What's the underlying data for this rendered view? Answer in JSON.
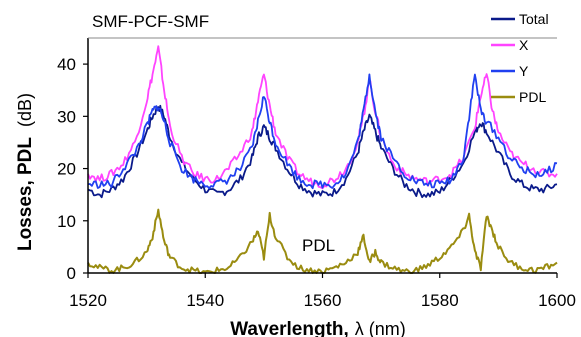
{
  "chart_data": {
    "type": "line",
    "title": "SMF-PCF-SMF",
    "xlabel": "Waverlength, λ (nm)",
    "xlabel_main": "Waverlength,",
    "xlabel_symbol": "λ",
    "xlabel_unit": "(nm)",
    "ylabel": "Losses, PDL (dB)",
    "ylabel_main": "Losses, PDL",
    "ylabel_unit": "(dB)",
    "xlim": [
      1520,
      1600
    ],
    "ylim": [
      0,
      45
    ],
    "xticks": [
      "1520",
      "1540",
      "1560",
      "1580",
      "1600"
    ],
    "yticks": [
      "0",
      "10",
      "20",
      "30",
      "40"
    ],
    "grid": false,
    "legend_position": "top-right",
    "annotation": "PDL",
    "series": [
      {
        "name": "Total",
        "color": "#0a1a8a",
        "points": [
          [
            1520,
            16
          ],
          [
            1522,
            15
          ],
          [
            1524,
            16
          ],
          [
            1526,
            18
          ],
          [
            1528,
            22
          ],
          [
            1530,
            27
          ],
          [
            1531,
            30
          ],
          [
            1532,
            32
          ],
          [
            1533,
            30
          ],
          [
            1534,
            26
          ],
          [
            1536,
            21
          ],
          [
            1538,
            18
          ],
          [
            1540,
            16
          ],
          [
            1542,
            15
          ],
          [
            1544,
            16
          ],
          [
            1546,
            18
          ],
          [
            1548,
            22
          ],
          [
            1549,
            26
          ],
          [
            1550,
            28
          ],
          [
            1551,
            26
          ],
          [
            1552,
            24
          ],
          [
            1554,
            20
          ],
          [
            1556,
            17
          ],
          [
            1558,
            15.5
          ],
          [
            1560,
            15
          ],
          [
            1562,
            15.5
          ],
          [
            1564,
            18
          ],
          [
            1566,
            23
          ],
          [
            1567,
            27
          ],
          [
            1568,
            30
          ],
          [
            1569,
            27
          ],
          [
            1570,
            24
          ],
          [
            1572,
            20
          ],
          [
            1574,
            17
          ],
          [
            1576,
            15.5
          ],
          [
            1578,
            15
          ],
          [
            1580,
            15.5
          ],
          [
            1582,
            18
          ],
          [
            1584,
            21
          ],
          [
            1586,
            27
          ],
          [
            1587,
            29
          ],
          [
            1588,
            27
          ],
          [
            1590,
            23
          ],
          [
            1592,
            19
          ],
          [
            1594,
            17
          ],
          [
            1596,
            16
          ],
          [
            1598,
            16
          ],
          [
            1600,
            17
          ]
        ]
      },
      {
        "name": "X",
        "color": "#ff44ff",
        "points": [
          [
            1520,
            19
          ],
          [
            1522,
            18
          ],
          [
            1524,
            19
          ],
          [
            1526,
            21
          ],
          [
            1528,
            25
          ],
          [
            1530,
            33
          ],
          [
            1531,
            38
          ],
          [
            1532,
            43
          ],
          [
            1533,
            35
          ],
          [
            1534,
            28
          ],
          [
            1536,
            22
          ],
          [
            1538,
            19
          ],
          [
            1540,
            18
          ],
          [
            1542,
            18
          ],
          [
            1544,
            20
          ],
          [
            1546,
            23
          ],
          [
            1548,
            27
          ],
          [
            1549,
            33
          ],
          [
            1550,
            38
          ],
          [
            1551,
            32
          ],
          [
            1552,
            27
          ],
          [
            1554,
            22
          ],
          [
            1556,
            19
          ],
          [
            1558,
            17.5
          ],
          [
            1560,
            17
          ],
          [
            1562,
            18
          ],
          [
            1564,
            20
          ],
          [
            1566,
            25
          ],
          [
            1567,
            30
          ],
          [
            1568,
            37
          ],
          [
            1569,
            31
          ],
          [
            1570,
            26
          ],
          [
            1572,
            21
          ],
          [
            1574,
            19
          ],
          [
            1576,
            18
          ],
          [
            1578,
            17.5
          ],
          [
            1580,
            18
          ],
          [
            1582,
            19
          ],
          [
            1584,
            22
          ],
          [
            1586,
            28
          ],
          [
            1587,
            34
          ],
          [
            1588,
            38
          ],
          [
            1589,
            31
          ],
          [
            1590,
            27
          ],
          [
            1592,
            23
          ],
          [
            1594,
            21
          ],
          [
            1596,
            20
          ],
          [
            1598,
            19
          ],
          [
            1600,
            19
          ]
        ]
      },
      {
        "name": "Y",
        "color": "#2040f0",
        "points": [
          [
            1520,
            17
          ],
          [
            1522,
            17
          ],
          [
            1524,
            17
          ],
          [
            1526,
            20
          ],
          [
            1528,
            23
          ],
          [
            1530,
            28
          ],
          [
            1531,
            31
          ],
          [
            1532,
            32
          ],
          [
            1533,
            29
          ],
          [
            1534,
            25
          ],
          [
            1536,
            20
          ],
          [
            1538,
            18
          ],
          [
            1540,
            17
          ],
          [
            1542,
            17
          ],
          [
            1544,
            18
          ],
          [
            1546,
            20
          ],
          [
            1548,
            24
          ],
          [
            1549,
            29
          ],
          [
            1550,
            34
          ],
          [
            1551,
            29
          ],
          [
            1552,
            25
          ],
          [
            1554,
            21
          ],
          [
            1556,
            18
          ],
          [
            1558,
            17
          ],
          [
            1560,
            17
          ],
          [
            1562,
            17
          ],
          [
            1564,
            19
          ],
          [
            1566,
            25
          ],
          [
            1567,
            31
          ],
          [
            1568,
            38
          ],
          [
            1569,
            31
          ],
          [
            1570,
            26
          ],
          [
            1572,
            22
          ],
          [
            1574,
            19
          ],
          [
            1576,
            17.5
          ],
          [
            1578,
            17
          ],
          [
            1580,
            17
          ],
          [
            1582,
            18
          ],
          [
            1584,
            22
          ],
          [
            1585,
            30
          ],
          [
            1586,
            38
          ],
          [
            1587,
            31
          ],
          [
            1588,
            29
          ],
          [
            1590,
            26
          ],
          [
            1592,
            22
          ],
          [
            1594,
            20
          ],
          [
            1596,
            19
          ],
          [
            1598,
            19
          ],
          [
            1600,
            21
          ]
        ]
      },
      {
        "name": "PDL",
        "color": "#9a8c10",
        "points": [
          [
            1520,
            2
          ],
          [
            1522,
            1
          ],
          [
            1524,
            0.5
          ],
          [
            1526,
            1
          ],
          [
            1528,
            2
          ],
          [
            1530,
            4
          ],
          [
            1531,
            7
          ],
          [
            1532,
            12
          ],
          [
            1533,
            6
          ],
          [
            1534,
            3
          ],
          [
            1536,
            1
          ],
          [
            1538,
            0.5
          ],
          [
            1540,
            0
          ],
          [
            1542,
            0.5
          ],
          [
            1544,
            1
          ],
          [
            1546,
            3
          ],
          [
            1548,
            6
          ],
          [
            1549,
            8
          ],
          [
            1550,
            3
          ],
          [
            1551,
            11
          ],
          [
            1552,
            7
          ],
          [
            1554,
            3
          ],
          [
            1556,
            1
          ],
          [
            1558,
            0.5
          ],
          [
            1560,
            0.3
          ],
          [
            1562,
            1
          ],
          [
            1564,
            2
          ],
          [
            1566,
            4
          ],
          [
            1567,
            7
          ],
          [
            1568,
            2
          ],
          [
            1569,
            4
          ],
          [
            1570,
            2
          ],
          [
            1572,
            1
          ],
          [
            1574,
            0.3
          ],
          [
            1576,
            0.5
          ],
          [
            1578,
            1.5
          ],
          [
            1580,
            3
          ],
          [
            1582,
            5
          ],
          [
            1584,
            8
          ],
          [
            1585,
            11
          ],
          [
            1586,
            4
          ],
          [
            1587,
            1
          ],
          [
            1588,
            11
          ],
          [
            1589,
            8
          ],
          [
            1590,
            5
          ],
          [
            1592,
            2
          ],
          [
            1594,
            1
          ],
          [
            1596,
            0.5
          ],
          [
            1598,
            1
          ],
          [
            1600,
            2
          ]
        ]
      }
    ]
  }
}
